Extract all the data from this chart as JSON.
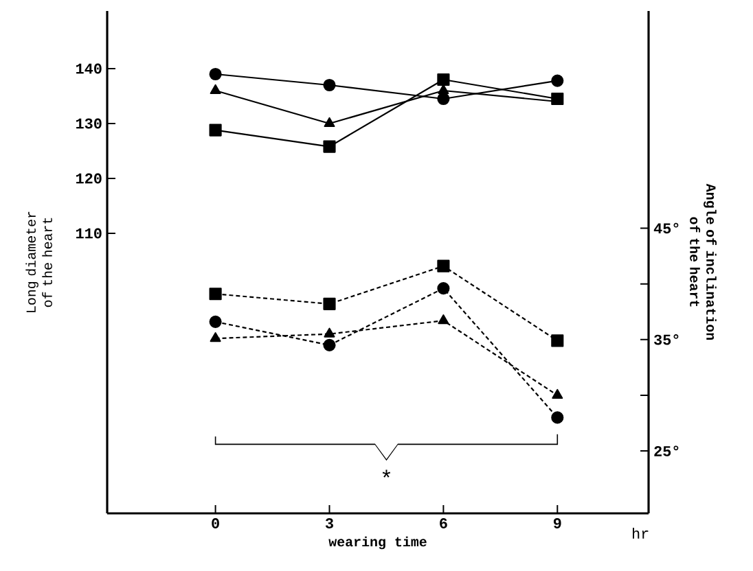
{
  "chart_data": {
    "type": "line",
    "xlabel": "wearing time",
    "ylabel": "Long diameter of the heart",
    "y2label": "Angle of inclination of the heart",
    "x": [
      0,
      3,
      6,
      9
    ],
    "xlim": [
      -2.85,
      11.4
    ],
    "xticks": [
      0,
      3,
      6,
      9
    ],
    "ylim": [
      59,
      150.5
    ],
    "yticks": [
      110,
      120,
      130,
      140
    ],
    "y2lim": [
      19.4,
      64.5
    ],
    "y2ticks": [
      {
        "value": 25,
        "label": "25°"
      },
      {
        "value": 30,
        "label": null
      },
      {
        "value": 35,
        "label": "35°"
      },
      {
        "value": 40,
        "label": null
      },
      {
        "value": 45,
        "label": "45°"
      }
    ],
    "series": [
      {
        "color": "#000000",
        "marker": "circle",
        "line_style": "solid",
        "values": [
          139,
          137,
          134.5,
          137.8
        ]
      },
      {
        "color": "#000000",
        "marker": "triangle",
        "line_style": "solid",
        "values": [
          136,
          130,
          136,
          134
        ]
      },
      {
        "color": "#000000",
        "marker": "square",
        "line_style": "solid",
        "values": [
          128.8,
          125.8,
          138,
          134.5
        ]
      },
      {
        "color": "#000000",
        "marker": "square",
        "line_style": "dashed",
        "axis": "y2",
        "values": [
          39.1,
          38.2,
          41.6,
          34.9
        ]
      },
      {
        "color": "#000000",
        "marker": "circle",
        "line_style": "dashed",
        "axis": "y2",
        "values": [
          36.6,
          34.5,
          39.6,
          28
        ]
      },
      {
        "color": "#000000",
        "marker": "triangle",
        "line_style": "dashed",
        "axis": "y2",
        "values": [
          35.1,
          35.5,
          36.7,
          30
        ]
      }
    ],
    "annotations": [
      "*",
      "hr"
    ]
  }
}
